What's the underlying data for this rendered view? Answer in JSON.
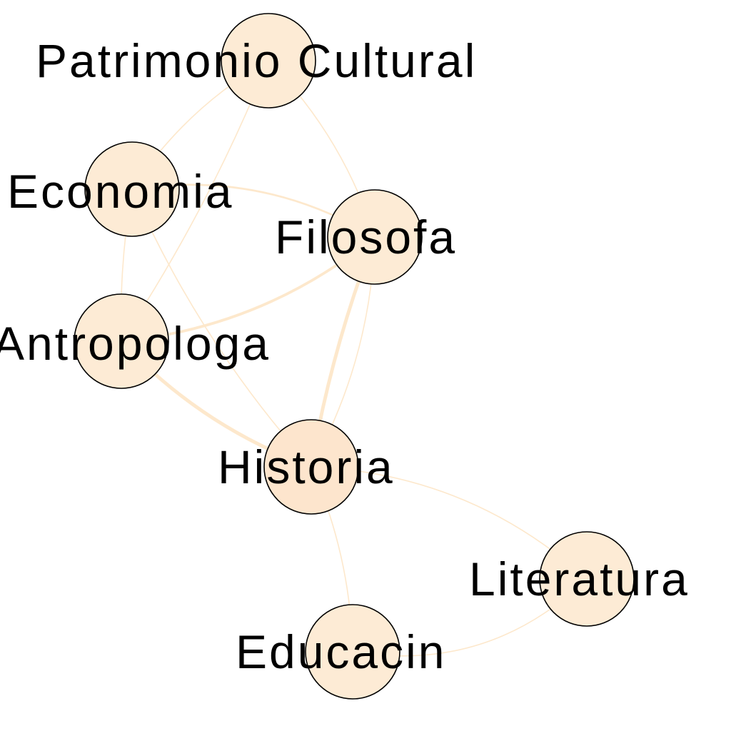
{
  "diagram": {
    "type": "network-graph",
    "colors": {
      "node_fill": "#fdebd5",
      "node_stroke": "#000000",
      "edge": "#fde8cc",
      "label": "#000000"
    },
    "nodes": [
      {
        "id": "patrimonio",
        "label": "Patrimonio Cultural"
      },
      {
        "id": "economia",
        "label": "Economia"
      },
      {
        "id": "filosofa",
        "label": "Filosofa"
      },
      {
        "id": "antropologa",
        "label": "Antropologa"
      },
      {
        "id": "historia",
        "label": "Historia"
      },
      {
        "id": "literatura",
        "label": "Literatura"
      },
      {
        "id": "educacin",
        "label": "Educacin"
      }
    ],
    "edges": [
      {
        "source": "patrimonio",
        "target": "economia",
        "weight": 1
      },
      {
        "source": "patrimonio",
        "target": "antropologa",
        "weight": 1
      },
      {
        "source": "patrimonio",
        "target": "filosofa",
        "weight": 1
      },
      {
        "source": "economia",
        "target": "filosofa",
        "weight": 2
      },
      {
        "source": "economia",
        "target": "antropologa",
        "weight": 1
      },
      {
        "source": "economia",
        "target": "historia",
        "weight": 1
      },
      {
        "source": "filosofa",
        "target": "antropologa",
        "weight": 3
      },
      {
        "source": "filosofa",
        "target": "historia",
        "weight": 4
      },
      {
        "source": "filosofa",
        "target": "historia",
        "weight": 1
      },
      {
        "source": "antropologa",
        "target": "historia",
        "weight": 4
      },
      {
        "source": "historia",
        "target": "literatura",
        "weight": 1
      },
      {
        "source": "historia",
        "target": "educacin",
        "weight": 1
      },
      {
        "source": "educacin",
        "target": "literatura",
        "weight": 1
      }
    ]
  }
}
